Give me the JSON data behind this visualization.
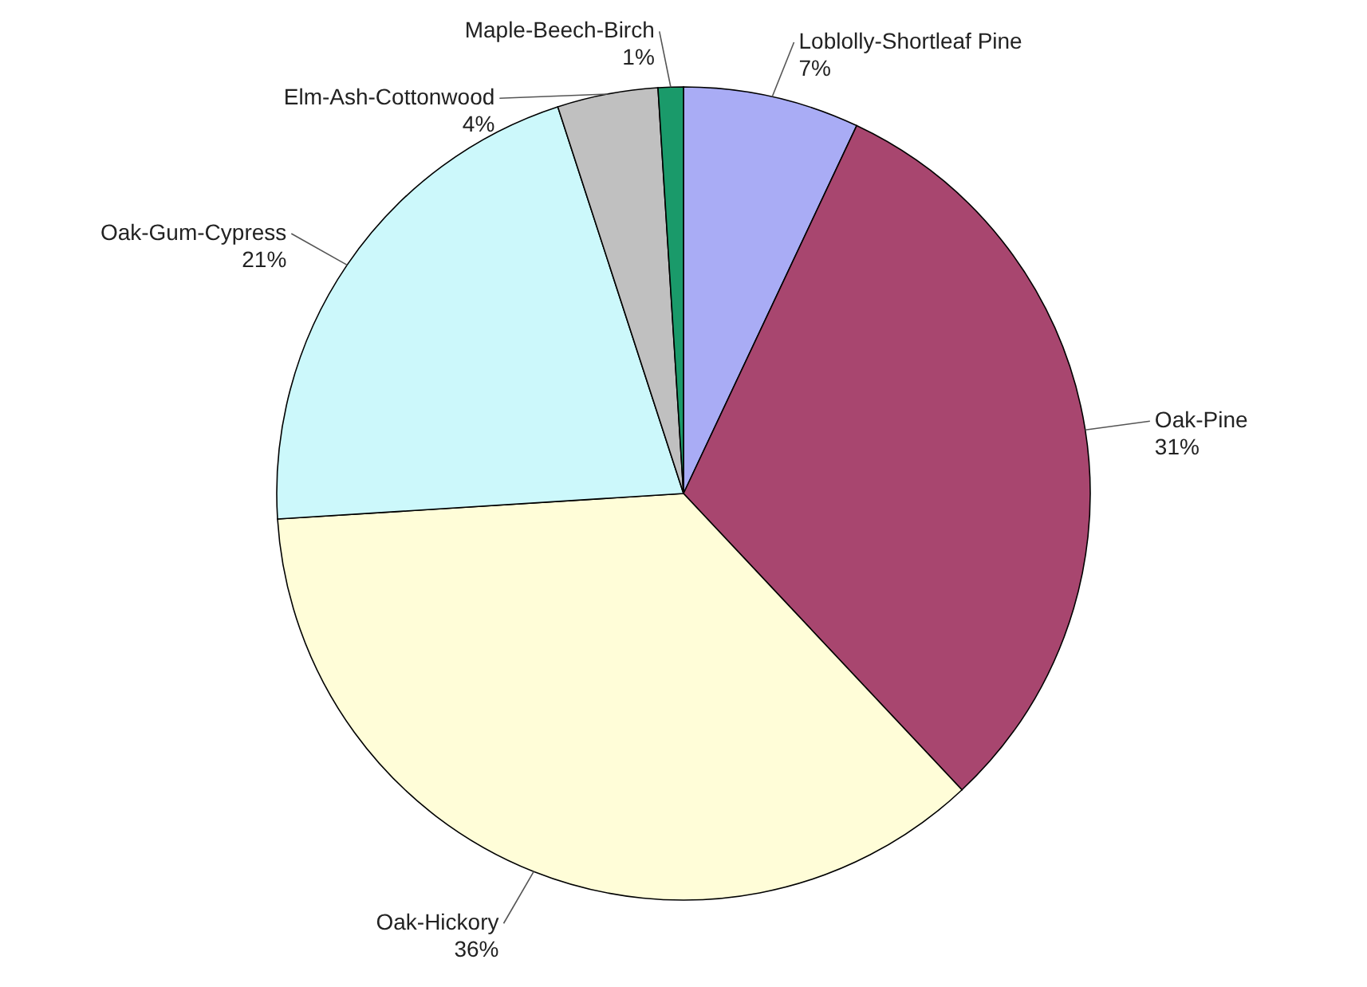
{
  "chart_data": {
    "type": "pie",
    "categories": [
      "Loblolly-Shortleaf Pine",
      "Oak-Pine",
      "Oak-Hickory",
      "Oak-Gum-Cypress",
      "Elm-Ash-Cottonwood",
      "Maple-Beech-Birch"
    ],
    "values": [
      7,
      31,
      36,
      21,
      4,
      1
    ],
    "value_labels": [
      "7%",
      "31%",
      "36%",
      "21%",
      "4%",
      "1%"
    ],
    "colors": [
      "#a9acf5",
      "#a8466f",
      "#fffdd8",
      "#ccf8fb",
      "#c0c0c0",
      "#1a9a6a"
    ]
  }
}
